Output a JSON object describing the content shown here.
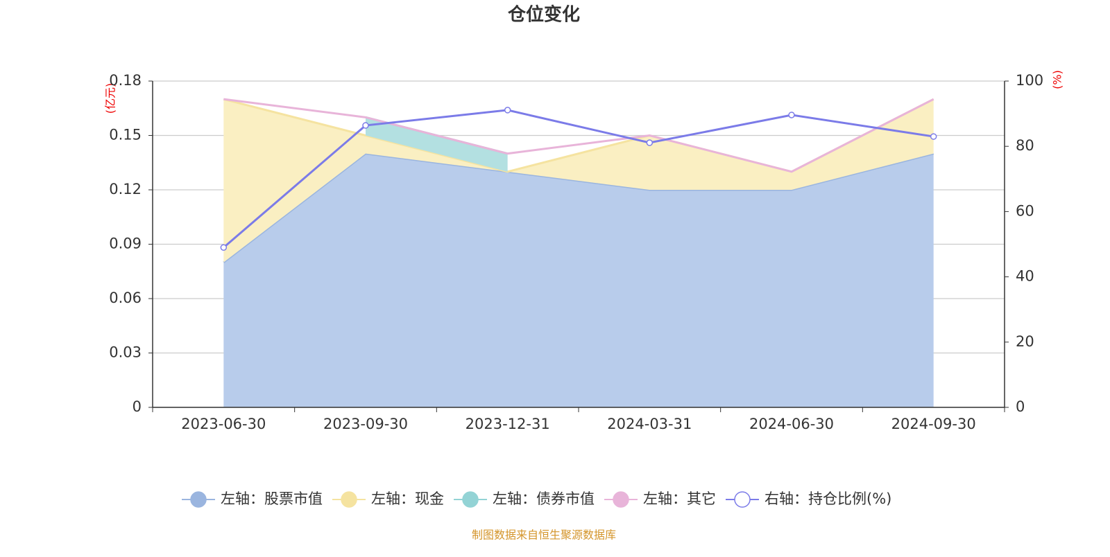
{
  "chart_data": {
    "type": "stacked-area-line",
    "title": "仓位变化",
    "categories": [
      "2023-06-30",
      "2023-09-30",
      "2023-12-31",
      "2024-03-31",
      "2024-06-30",
      "2024-09-30"
    ],
    "y_label": "(亿元)",
    "y2_label": "(%)",
    "ylim": [
      0,
      0.18
    ],
    "yticks": [
      0,
      0.03,
      0.06,
      0.09,
      0.12,
      0.15,
      0.18
    ],
    "y2lim": [
      0,
      100
    ],
    "y2ticks": [
      0,
      20,
      40,
      60,
      80,
      100
    ],
    "grid": true,
    "series": [
      {
        "name": "左轴：股票市值",
        "color": "#9ab5df",
        "fill": "#b8cceb",
        "values": [
          0.08,
          0.14,
          0.13,
          0.12,
          0.12,
          0.14
        ]
      },
      {
        "name": "左轴：现金",
        "color": "#f5e3a0",
        "fill": "#faefc2",
        "values": [
          0.09,
          0.01,
          0,
          0.03,
          0.01,
          0.03
        ]
      },
      {
        "name": "左轴：债券市值",
        "color": "#93d3d5",
        "fill": "#b3e0e1",
        "values": [
          null,
          0.01,
          0.01,
          null,
          null,
          null
        ]
      },
      {
        "name": "左轴：其它",
        "color": "#e8b4d9",
        "values": [
          0,
          0,
          0,
          0,
          0,
          0
        ]
      },
      {
        "name": "右轴：持仓比例(%)",
        "color": "#7b7be8",
        "axis": "y2",
        "values": [
          49,
          86.4,
          91.1,
          81.1,
          89.6,
          83
        ]
      }
    ],
    "source": "制图数据来自恒生聚源数据库"
  }
}
